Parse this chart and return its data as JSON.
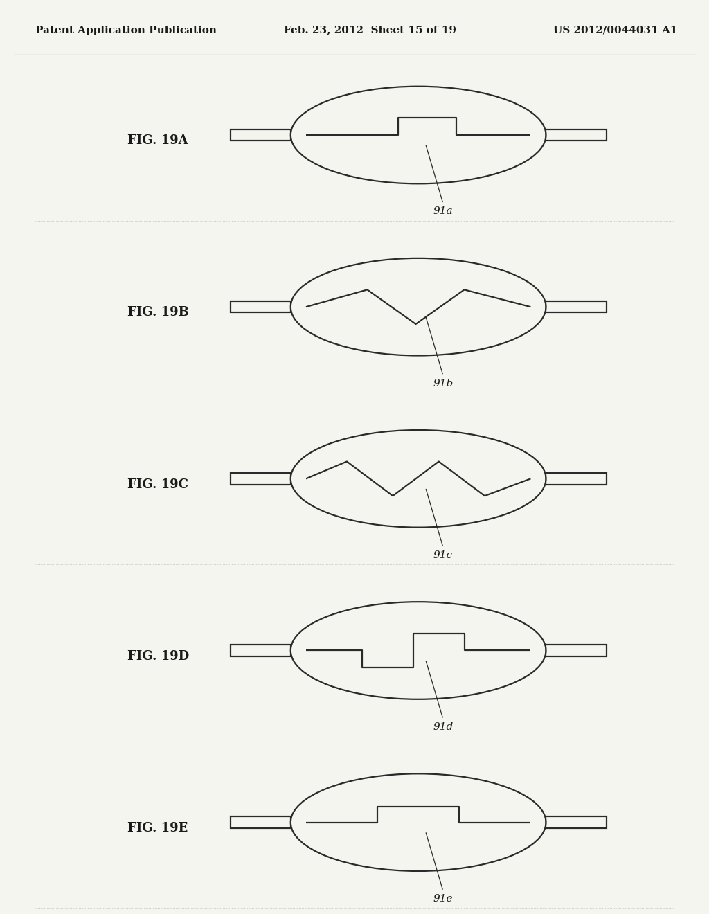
{
  "header_left": "Patent Application Publication",
  "header_center": "Feb. 23, 2012  Sheet 15 of 19",
  "header_right": "US 2012/0044031 A1",
  "figures": [
    {
      "label": "FIG. 19A",
      "tag": "91a",
      "type": "single_step_up"
    },
    {
      "label": "FIG. 19B",
      "tag": "91b",
      "type": "zigzag_2"
    },
    {
      "label": "FIG. 19C",
      "tag": "91c",
      "type": "zigzag_3"
    },
    {
      "label": "FIG. 19D",
      "tag": "91d",
      "type": "double_step"
    },
    {
      "label": "FIG. 19E",
      "tag": "91e",
      "type": "single_step_center"
    }
  ],
  "line_color": "#2a2a2a",
  "bg_color": "#f5f5f0",
  "text_color": "#1a1a1a",
  "header_font_size": 11,
  "label_font_size": 13,
  "tag_font_size": 11
}
